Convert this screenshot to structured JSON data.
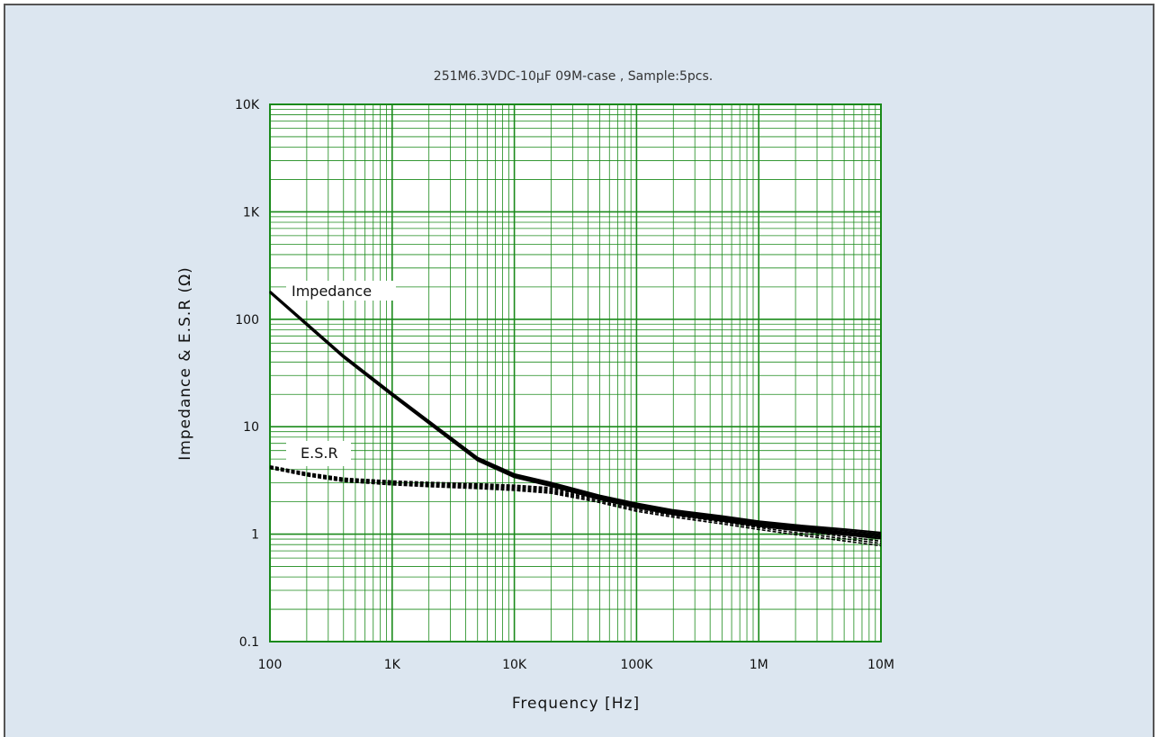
{
  "chart_data": {
    "type": "line",
    "title": "251M6.3VDC-10μF 09M-case , Sample:5pcs.",
    "xlabel": "Frequency [Hz]",
    "ylabel": "Impedance & E.S.R (Ω)",
    "x_scale": "log",
    "y_scale": "log",
    "xlim": [
      100,
      10000000
    ],
    "ylim": [
      0.1,
      10000
    ],
    "x_ticks": [
      100,
      1000,
      10000,
      100000,
      1000000,
      10000000
    ],
    "x_tick_labels": [
      "100",
      "1K",
      "10K",
      "100K",
      "1M",
      "10M"
    ],
    "y_ticks": [
      0.1,
      1,
      10,
      100,
      1000,
      10000
    ],
    "y_tick_labels": [
      "0.1",
      "1",
      "10",
      "100",
      "1K",
      "10K"
    ],
    "grid": true,
    "colors": {
      "background": "#dce6f0",
      "plot_area": "#ffffff",
      "grid": "#1a8a1a",
      "series": "#000000"
    },
    "annotations": [
      "Impedance",
      "E.S.R"
    ],
    "x": [
      100,
      200,
      400,
      1000,
      2000,
      5000,
      10000,
      20000,
      50000,
      100000,
      200000,
      500000,
      1000000,
      2000000,
      5000000,
      10000000
    ],
    "series": [
      {
        "name": "Impedance",
        "style": "solid",
        "spread": 0.02,
        "values": [
          180,
          90,
          45,
          20,
          11,
          5.0,
          3.5,
          2.9,
          2.2,
          1.85,
          1.6,
          1.4,
          1.25,
          1.15,
          1.05,
          0.97
        ]
      },
      {
        "name": "E.S.R",
        "style": "dotted",
        "spread": 0.03,
        "values": [
          4.2,
          3.6,
          3.2,
          3.0,
          2.9,
          2.8,
          2.7,
          2.55,
          2.1,
          1.75,
          1.55,
          1.35,
          1.2,
          1.08,
          0.95,
          0.86
        ]
      }
    ]
  }
}
